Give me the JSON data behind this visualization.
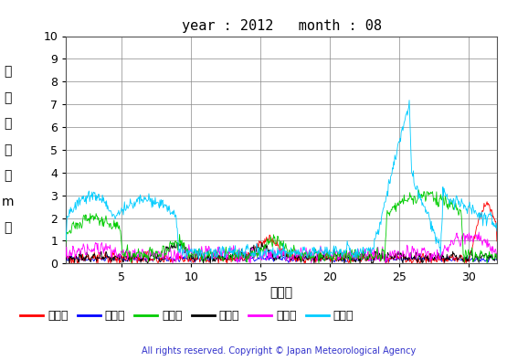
{
  "title": "year : 2012   month : 08",
  "xlabel": "（日）",
  "ylabel_lines": [
    "有義波高",
    "（m）"
  ],
  "ylim": [
    0,
    10
  ],
  "xlim": [
    1,
    32
  ],
  "yticks": [
    0,
    1,
    2,
    3,
    4,
    5,
    6,
    7,
    8,
    9,
    10
  ],
  "xticks": [
    5,
    10,
    15,
    20,
    25,
    30
  ],
  "copyright": "All rights reserved. Copyright © Japan Meteorological Agency",
  "legend_labels": [
    "上ノ国",
    "江ノ島",
    "石廀崎",
    "経ヶ岸",
    "生月島",
    "屋久島"
  ],
  "legend_colors": [
    "#ff0000",
    "#0000ff",
    "#00cc00",
    "#000000",
    "#ff00ff",
    "#00ccff"
  ],
  "bg_color": "#ffffff",
  "grid_color": "#888888",
  "line_width": 0.6,
  "n_points": 744
}
